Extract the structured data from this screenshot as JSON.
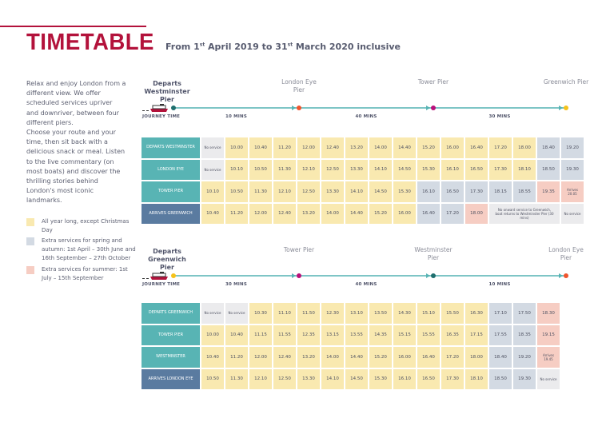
{
  "header": {
    "title": "TIMETABLE",
    "subtitle_parts": [
      "From 1",
      "st",
      " April 2019 to 31",
      "st",
      " March 2020 inclusive"
    ]
  },
  "intro": [
    "Relax and enjoy London from a different view. We offer scheduled services upriver and downriver, between four different piers.",
    "Choose your route and your time, then sit back with a delicious snack or meal. Listen to the live commentary (on most boats) and discover the thrilling stories behind London's most iconic landmarks."
  ],
  "colors": {
    "brand": "#b3123b",
    "all_year": "#f9e9b0",
    "spring_autumn": "#d3dae3",
    "summer": "#f6cdc3",
    "no_service": "#ebebed",
    "pier_header": "#58b4b4",
    "arrival_header": "#5a7ba0"
  },
  "legend": [
    {
      "color": "all_year",
      "text": "All year long, except Christmas Day"
    },
    {
      "color": "spring_autumn",
      "text": "Extra services for spring and autumn:  1st April – 30th June and 16th September – 27th October"
    },
    {
      "color": "summer",
      "text": "Extra services for summer: 1st July – 15th September"
    }
  ],
  "routes": [
    {
      "departs": "Departs Westminster Pier",
      "journey_label": "JOURNEY TIME",
      "stops": [
        {
          "name": "Westminster Pier",
          "dot": "#1f6f6e"
        },
        {
          "name": "London Eye Pier",
          "dot": "#f0552e"
        },
        {
          "name": "Tower Pier",
          "dot": "#b8107a"
        },
        {
          "name": "Greenwich Pier",
          "dot": "#f5c21b"
        }
      ],
      "segments": [
        "10 MINS",
        "40 MINS",
        "30 MINS"
      ],
      "rows": [
        {
          "label": "DEPARTS WESTMINSTER",
          "header": "pier",
          "cells": [
            [
              "No service",
              "n"
            ],
            [
              "10.00",
              "y"
            ],
            [
              "10.40",
              "y"
            ],
            [
              "11.20",
              "y"
            ],
            [
              "12.00",
              "y"
            ],
            [
              "12.40",
              "y"
            ],
            [
              "13.20",
              "y"
            ],
            [
              "14.00",
              "y"
            ],
            [
              "14.40",
              "y"
            ],
            [
              "15.20",
              "y"
            ],
            [
              "16.00",
              "y"
            ],
            [
              "16.40",
              "y"
            ],
            [
              "17.20",
              "y"
            ],
            [
              "18.00",
              "y"
            ],
            [
              "18.40",
              "b"
            ],
            [
              "19.20",
              "b"
            ]
          ]
        },
        {
          "label": "LONDON EYE",
          "header": "pier",
          "cells": [
            [
              "No service",
              "n"
            ],
            [
              "10.10",
              "y"
            ],
            [
              "10.50",
              "y"
            ],
            [
              "11.30",
              "y"
            ],
            [
              "12.10",
              "y"
            ],
            [
              "12.50",
              "y"
            ],
            [
              "13.30",
              "y"
            ],
            [
              "14.10",
              "y"
            ],
            [
              "14.50",
              "y"
            ],
            [
              "15.30",
              "y"
            ],
            [
              "16.10",
              "y"
            ],
            [
              "16.50",
              "y"
            ],
            [
              "17.30",
              "y"
            ],
            [
              "18.10",
              "y"
            ],
            [
              "18.50",
              "b"
            ],
            [
              "19.30",
              "b"
            ]
          ]
        },
        {
          "label": "TOWER PIER",
          "header": "pier",
          "cells": [
            [
              "10.10",
              "y"
            ],
            [
              "10.50",
              "y"
            ],
            [
              "11.30",
              "y"
            ],
            [
              "12.10",
              "y"
            ],
            [
              "12.50",
              "y"
            ],
            [
              "13.30",
              "y"
            ],
            [
              "14.10",
              "y"
            ],
            [
              "14.50",
              "y"
            ],
            [
              "15.30",
              "y"
            ],
            [
              "16.10",
              "b"
            ],
            [
              "16.50",
              "b"
            ],
            [
              "17.30",
              "b"
            ],
            [
              "18.15",
              "b"
            ],
            [
              "18.55",
              "b"
            ],
            [
              "19.35",
              "p"
            ],
            [
              "Arrives 20.05",
              "p"
            ]
          ]
        },
        {
          "label": "ARRIVES GREENWICH",
          "header": "arrival",
          "cells": [
            [
              "10.40",
              "y"
            ],
            [
              "11.20",
              "y"
            ],
            [
              "12.00",
              "y"
            ],
            [
              "12.40",
              "y"
            ],
            [
              "13.20",
              "y"
            ],
            [
              "14.00",
              "y"
            ],
            [
              "14.40",
              "y"
            ],
            [
              "15.20",
              "y"
            ],
            [
              "16.00",
              "y"
            ],
            [
              "16.40",
              "b"
            ],
            [
              "17.20",
              "b"
            ],
            [
              "18.00",
              "p"
            ],
            [
              "No onward service to Greenwich, boat returns to Westminster Pier (30 mins)",
              "n",
              3
            ],
            [
              "No service",
              "n"
            ]
          ]
        }
      ]
    },
    {
      "departs": "Departs Greenwich Pier",
      "journey_label": "JOURNEY TIME",
      "stops": [
        {
          "name": "Greenwich Pier",
          "dot": "#f5c21b"
        },
        {
          "name": "Tower Pier",
          "dot": "#b8107a"
        },
        {
          "name": "Westminster Pier",
          "dot": "#1f6f6e"
        },
        {
          "name": "London Eye Pier",
          "dot": "#f0552e"
        }
      ],
      "segments": [
        "30 MINS",
        "40 MINS",
        "10 MINS"
      ],
      "rows": [
        {
          "label": "DEPARTS GREENWICH",
          "header": "pier",
          "cells": [
            [
              "No service",
              "n"
            ],
            [
              "No service",
              "n"
            ],
            [
              "10.30",
              "y"
            ],
            [
              "11.10",
              "y"
            ],
            [
              "11.50",
              "y"
            ],
            [
              "12.30",
              "y"
            ],
            [
              "13.10",
              "y"
            ],
            [
              "13.50",
              "y"
            ],
            [
              "14.30",
              "y"
            ],
            [
              "15.10",
              "y"
            ],
            [
              "15.50",
              "y"
            ],
            [
              "16.30",
              "y"
            ],
            [
              "17.10",
              "b"
            ],
            [
              "17.50",
              "b"
            ],
            [
              "18.30",
              "p"
            ]
          ]
        },
        {
          "label": "TOWER PIER",
          "header": "pier",
          "cells": [
            [
              "10.00",
              "y"
            ],
            [
              "10.40",
              "y"
            ],
            [
              "11.15",
              "y"
            ],
            [
              "11.55",
              "y"
            ],
            [
              "12.35",
              "y"
            ],
            [
              "13.15",
              "y"
            ],
            [
              "13.55",
              "y"
            ],
            [
              "14.35",
              "y"
            ],
            [
              "15.15",
              "y"
            ],
            [
              "15.55",
              "y"
            ],
            [
              "16.35",
              "y"
            ],
            [
              "17.15",
              "y"
            ],
            [
              "17.55",
              "b"
            ],
            [
              "18.35",
              "b"
            ],
            [
              "19.15",
              "p"
            ]
          ]
        },
        {
          "label": "WESTMINSTER",
          "header": "pier",
          "cells": [
            [
              "10.40",
              "y"
            ],
            [
              "11.20",
              "y"
            ],
            [
              "12.00",
              "y"
            ],
            [
              "12.40",
              "y"
            ],
            [
              "13.20",
              "y"
            ],
            [
              "14.00",
              "y"
            ],
            [
              "14.40",
              "y"
            ],
            [
              "15.20",
              "y"
            ],
            [
              "16.00",
              "y"
            ],
            [
              "16.40",
              "y"
            ],
            [
              "17.20",
              "y"
            ],
            [
              "18.00",
              "y"
            ],
            [
              "18.40",
              "b"
            ],
            [
              "19.20",
              "b"
            ],
            [
              "Arrives 19.45",
              "p"
            ]
          ]
        },
        {
          "label": "ARRIVES LONDON EYE",
          "header": "arrival",
          "cells": [
            [
              "10.50",
              "y"
            ],
            [
              "11.30",
              "y"
            ],
            [
              "12.10",
              "y"
            ],
            [
              "12.50",
              "y"
            ],
            [
              "13.30",
              "y"
            ],
            [
              "14.10",
              "y"
            ],
            [
              "14.50",
              "y"
            ],
            [
              "15.30",
              "y"
            ],
            [
              "16.10",
              "y"
            ],
            [
              "16.50",
              "y"
            ],
            [
              "17.30",
              "y"
            ],
            [
              "18.10",
              "y"
            ],
            [
              "18.50",
              "b"
            ],
            [
              "19.30",
              "b"
            ],
            [
              "No service",
              "n"
            ]
          ]
        }
      ]
    }
  ]
}
